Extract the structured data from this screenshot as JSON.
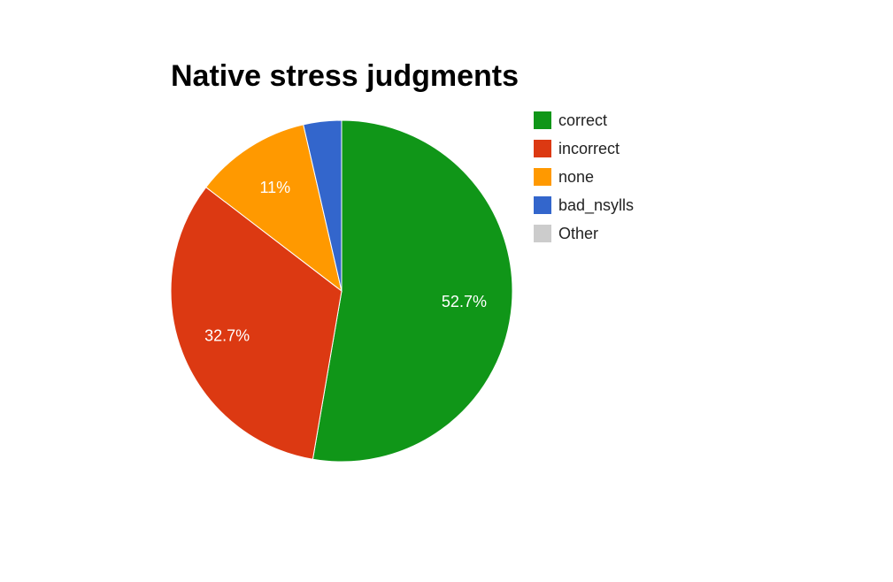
{
  "chart_data": {
    "type": "pie",
    "title": "Native stress judgments",
    "slices": [
      {
        "label": "correct",
        "value": 52.7,
        "display": "52.7%",
        "color": "#109618"
      },
      {
        "label": "incorrect",
        "value": 32.7,
        "display": "32.7%",
        "color": "#dc3912"
      },
      {
        "label": "none",
        "value": 11.0,
        "display": "11%",
        "color": "#ff9900"
      },
      {
        "label": "bad_nsylls",
        "value": 3.6,
        "display": "",
        "color": "#3366cc"
      },
      {
        "label": "Other",
        "value": 0.0,
        "display": "",
        "color": "#cccccc"
      }
    ],
    "legend_position": "right",
    "start_angle": "12 o'clock, clockwise"
  }
}
